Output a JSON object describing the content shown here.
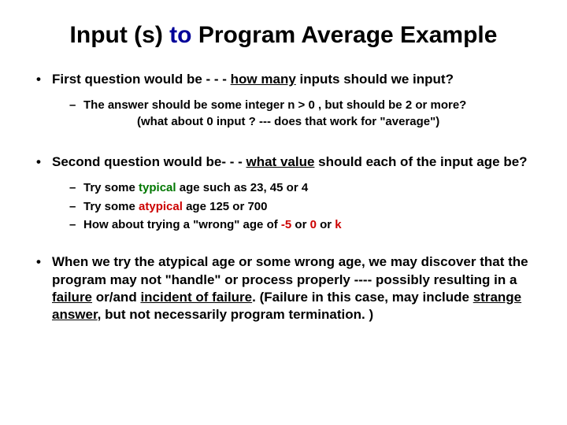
{
  "title": {
    "part1": "Input (s) ",
    "part2": "to",
    "part3": " Program Average Example",
    "color_black": "#000000",
    "color_navy": "#000099",
    "fontsize": 30
  },
  "bullets": {
    "b1": {
      "pre": "First question would be  - - -  ",
      "emph": "how many",
      "post": " inputs should we input?",
      "sub1_line1": "The answer should be some integer  n > 0 , but should be 2 or more?",
      "sub1_line2": "(what about 0 input ? --- does that work for \"average\")"
    },
    "b2": {
      "pre": "Second question would be- - - ",
      "emph": "what value",
      "post": " should each of the input age be?",
      "sub1_a": "Try some ",
      "sub1_b": "typical",
      "sub1_c": " age such as 23, 45 or 4",
      "sub2_a": "Try some ",
      "sub2_b": "atypical",
      "sub2_c": " age 125 or 700",
      "sub3_a": "How about trying a \"wrong\" age of ",
      "sub3_b": "-5",
      "sub3_c": " or ",
      "sub3_d": "0",
      "sub3_e": " or ",
      "sub3_f": "k"
    },
    "b3": {
      "a": "When we try the atypical age or some wrong age, we may discover that the program may not \"handle\" or process properly ---- possibly resulting in a ",
      "b": "failure",
      "c": " or/and ",
      "d": "incident of failure",
      "e": ". (Failure in this case, may include ",
      "f": "strange answer",
      "g": ", but not necessarily program termination. )"
    }
  },
  "colors": {
    "green": "#007700",
    "red": "#cc0000",
    "text": "#000000",
    "background": "#ffffff"
  },
  "body_fontsize_lvl1": 17,
  "body_fontsize_lvl2": 15
}
